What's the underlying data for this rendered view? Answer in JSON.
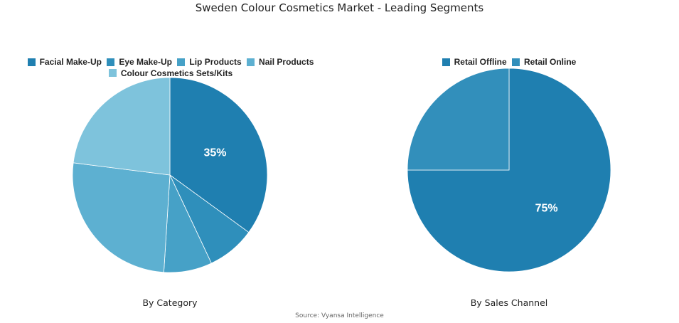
{
  "title": "Sweden Colour Cosmetics Market - Leading Segments",
  "source": "Source: Vyansa Intelligence",
  "chart_data": [
    {
      "type": "pie",
      "subtitle": "By Category",
      "legend_position": "top",
      "categories": [
        "Facial Make-Up",
        "Eye Make-Up",
        "Lip Products",
        "Nail Products",
        "Colour Cosmetics Sets/Kits"
      ],
      "values": [
        35,
        8,
        8,
        26,
        23
      ],
      "colors": [
        "#1f7fb0",
        "#2f8fbb",
        "#46a1c7",
        "#5db0d1",
        "#7ec3dc"
      ],
      "data_labels": [
        "35%",
        "",
        "",
        "",
        ""
      ]
    },
    {
      "type": "pie",
      "subtitle": "By Sales Channel",
      "legend_position": "top",
      "categories": [
        "Retail Offline",
        "Retail Online"
      ],
      "values": [
        75,
        25
      ],
      "colors": [
        "#1f7fb0",
        "#328fbb"
      ],
      "data_labels": [
        "75%",
        ""
      ]
    }
  ]
}
